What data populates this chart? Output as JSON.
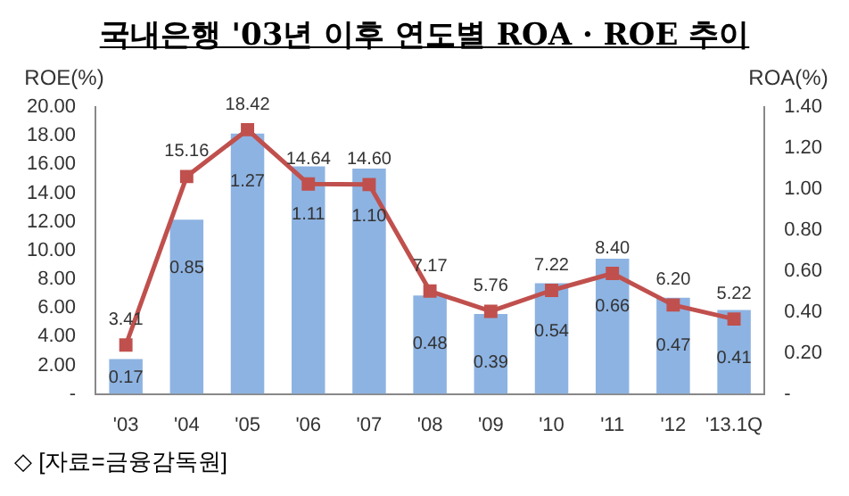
{
  "chart_data": {
    "type": "bar",
    "title": "국내은행 '03년 이후 연도별 ROA · ROE 추이",
    "ylabel": "ROE(%)",
    "y2label": "ROA(%)",
    "categories": [
      "'03",
      "'04",
      "'05",
      "'06",
      "'07",
      "'08",
      "'09",
      "'10",
      "'11",
      "'12",
      "'13.1Q"
    ],
    "series": [
      {
        "name": null,
        "axis": "y2",
        "color": "#8db3e2",
        "values": [
          0.17,
          0.85,
          1.27,
          1.11,
          1.1,
          0.48,
          0.39,
          0.54,
          0.66,
          0.47,
          0.41
        ],
        "value_labels": [
          "0.17",
          "0.85",
          "1.27",
          "1.11",
          "1.10",
          "0.48",
          "0.39",
          "0.54",
          "0.66",
          "0.47",
          "0.41"
        ]
      },
      {
        "name": null,
        "type": "line",
        "axis": "y",
        "color": "#c0504d",
        "marker": "square",
        "values": [
          3.41,
          15.16,
          18.42,
          14.64,
          14.6,
          7.17,
          5.76,
          7.22,
          8.4,
          6.2,
          5.22
        ],
        "value_labels": [
          "3.41",
          "15.16",
          "18.42",
          "14.64",
          "14.60",
          "7.17",
          "5.76",
          "7.22",
          "8.40",
          "6.20",
          "5.22"
        ]
      }
    ],
    "ylim": [
      0,
      20
    ],
    "yticks": [
      {
        "value": 0,
        "label": "-"
      },
      {
        "value": 2,
        "label": "2.00"
      },
      {
        "value": 4,
        "label": "4.00"
      },
      {
        "value": 6,
        "label": "6.00"
      },
      {
        "value": 8,
        "label": "8.00"
      },
      {
        "value": 10,
        "label": "10.00"
      },
      {
        "value": 12,
        "label": "12.00"
      },
      {
        "value": 14,
        "label": "14.00"
      },
      {
        "value": 16,
        "label": "16.00"
      },
      {
        "value": 18,
        "label": "18.00"
      },
      {
        "value": 20,
        "label": "20.00"
      }
    ],
    "y2lim": [
      0,
      1.4
    ],
    "y2ticks": [
      {
        "value": 0,
        "label": "-"
      },
      {
        "value": 0.2,
        "label": "0.20"
      },
      {
        "value": 0.4,
        "label": "0.40"
      },
      {
        "value": 0.6,
        "label": "0.60"
      },
      {
        "value": 0.8,
        "label": "0.80"
      },
      {
        "value": 1.0,
        "label": "1.00"
      },
      {
        "value": 1.2,
        "label": "1.20"
      },
      {
        "value": 1.4,
        "label": "1.40"
      }
    ],
    "grid": false,
    "legend": false,
    "annotations": [
      "◇ [자료=금융감독원]"
    ]
  }
}
